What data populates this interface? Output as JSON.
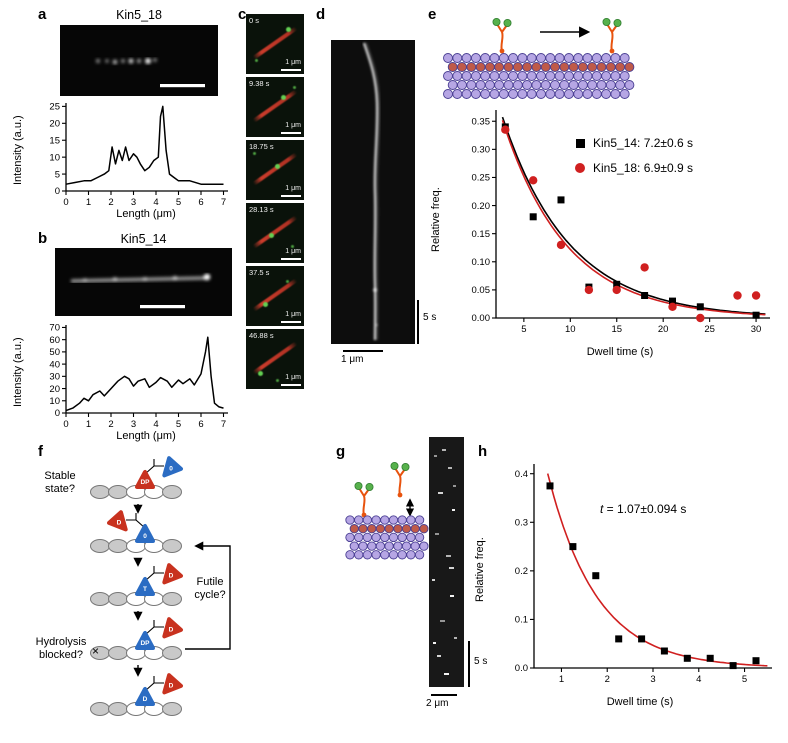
{
  "colors": {
    "background": "#ffffff",
    "mt_fill": "#b6a6e4",
    "mt_seam": "#bf5a49",
    "mt_stroke": "#4a3f93",
    "motor": "#e8530e",
    "motor_head": "#57b14c",
    "fit_red": "#d02020",
    "marker_black": "#000000"
  },
  "panel_a": {
    "label": "a",
    "title": "Kin5_18",
    "ylabel": "Intensity (a.u.)",
    "xlabel": "Length (μm)"
  },
  "panel_b": {
    "label": "b",
    "title": "Kin5_14",
    "ylabel": "Intensity (a.u.)",
    "xlabel": "Length (μm)"
  },
  "panel_c": {
    "label": "c",
    "scale_label": "1 μm",
    "frames": [
      {
        "time": "0 s"
      },
      {
        "time": "9.38 s"
      },
      {
        "time": "18.75 s"
      },
      {
        "time": "28.13 s"
      },
      {
        "time": "37.5 s"
      },
      {
        "time": "46.88 s"
      }
    ]
  },
  "panel_d": {
    "label": "d",
    "time_scale": "5 s",
    "length_scale": "1 μm"
  },
  "panel_e": {
    "label": "e",
    "ylabel": "Relative freq.",
    "xlabel": "Dwell time (s)",
    "legend": [
      {
        "marker": "square",
        "color": "#000000",
        "label": "Kin5_14: 7.2±0.6 s"
      },
      {
        "marker": "circle",
        "color": "#d02020",
        "label": "Kin5_18: 6.9±0.9 s"
      }
    ]
  },
  "panel_f": {
    "label": "f",
    "stable_label": "Stable state?",
    "futile_label": "Futile cycle?",
    "hydrolysis_label": "Hydrolysis blocked?",
    "cross_mark": "×",
    "states": [
      {
        "bound": {
          "color": "#c8321f",
          "label": "DP"
        },
        "tethered": {
          "color": "#2b6cc3",
          "label": "0",
          "side": "right"
        }
      },
      {
        "bound": {
          "color": "#2b6cc3",
          "label": "0"
        },
        "tethered": {
          "color": "#c8321f",
          "label": "D",
          "side": "left"
        }
      },
      {
        "bound": {
          "color": "#2b6cc3",
          "label": "T"
        },
        "tethered": {
          "color": "#c8321f",
          "label": "D",
          "side": "right"
        }
      },
      {
        "bound": {
          "color": "#2b6cc3",
          "label": "DP"
        },
        "tethered": {
          "color": "#c8321f",
          "label": "D",
          "side": "right"
        }
      },
      {
        "bound": {
          "color": "#2b6cc3",
          "label": "D"
        },
        "tethered": {
          "color": "#c8321f",
          "label": "D",
          "side": "right"
        }
      }
    ]
  },
  "panel_g": {
    "label": "g",
    "time_scale": "5 s",
    "length_scale": "2 μm"
  },
  "panel_h": {
    "label": "h",
    "ylabel": "Relative freq.",
    "xlabel": "Dwell time (s)",
    "annotation_var": "t",
    "annotation_rest": " = 1.07±0.094 s"
  },
  "chart_data": {
    "a": {
      "type": "line",
      "xlim": [
        0,
        7.2
      ],
      "ylim": [
        0,
        26
      ],
      "xdec": 0,
      "ydec": 0,
      "margin": {
        "l": 30,
        "t": 5,
        "r": 8,
        "b": 17
      },
      "xticks": [
        0,
        1,
        2,
        3,
        4,
        5,
        6,
        7
      ],
      "yticks": [
        0,
        5,
        10,
        15,
        20,
        25
      ],
      "xlabel": "Length (μm)",
      "ylabel": "Intensity (a.u.)",
      "series": [
        {
          "name": "Kin5_18 intensity profile",
          "type": "line",
          "color": "#000000",
          "points": [
            [
              0,
              2
            ],
            [
              0.4,
              2.5
            ],
            [
              0.8,
              3
            ],
            [
              1.1,
              3
            ],
            [
              1.4,
              4
            ],
            [
              1.7,
              5
            ],
            [
              1.9,
              6
            ],
            [
              2.05,
              13
            ],
            [
              2.2,
              8
            ],
            [
              2.35,
              12
            ],
            [
              2.5,
              9
            ],
            [
              2.65,
              13
            ],
            [
              2.8,
              9
            ],
            [
              3.0,
              11
            ],
            [
              3.15,
              10
            ],
            [
              3.3,
              8
            ],
            [
              3.5,
              6
            ],
            [
              3.7,
              7
            ],
            [
              3.9,
              9
            ],
            [
              4.1,
              10
            ],
            [
              4.2,
              22
            ],
            [
              4.3,
              25
            ],
            [
              4.45,
              12
            ],
            [
              4.6,
              5
            ],
            [
              4.8,
              4
            ],
            [
              5.0,
              3
            ],
            [
              5.5,
              3
            ],
            [
              6.0,
              2
            ],
            [
              6.5,
              2
            ],
            [
              7.0,
              2
            ]
          ]
        }
      ]
    },
    "b": {
      "type": "line",
      "xlim": [
        0,
        7.2
      ],
      "ylim": [
        0,
        72
      ],
      "xdec": 0,
      "ydec": 0,
      "margin": {
        "l": 30,
        "t": 5,
        "r": 8,
        "b": 17
      },
      "xticks": [
        0,
        1,
        2,
        3,
        4,
        5,
        6,
        7
      ],
      "yticks": [
        0,
        10,
        20,
        30,
        40,
        50,
        60,
        70
      ],
      "xlabel": "Length (μm)",
      "ylabel": "Intensity (a.u.)",
      "series": [
        {
          "name": "Kin5_14 intensity profile",
          "type": "line",
          "color": "#000000",
          "points": [
            [
              0,
              2
            ],
            [
              0.3,
              4
            ],
            [
              0.6,
              8
            ],
            [
              0.8,
              12
            ],
            [
              1.0,
              10
            ],
            [
              1.2,
              15
            ],
            [
              1.5,
              18
            ],
            [
              1.7,
              14
            ],
            [
              2.0,
              20
            ],
            [
              2.3,
              26
            ],
            [
              2.6,
              30
            ],
            [
              2.8,
              28
            ],
            [
              3.0,
              22
            ],
            [
              3.2,
              26
            ],
            [
              3.5,
              28
            ],
            [
              3.7,
              21
            ],
            [
              4.0,
              25
            ],
            [
              4.2,
              29
            ],
            [
              4.5,
              26
            ],
            [
              4.7,
              21
            ],
            [
              5.0,
              27
            ],
            [
              5.2,
              24
            ],
            [
              5.5,
              28
            ],
            [
              5.7,
              23
            ],
            [
              6.0,
              32
            ],
            [
              6.2,
              50
            ],
            [
              6.3,
              62
            ],
            [
              6.45,
              30
            ],
            [
              6.6,
              8
            ],
            [
              6.8,
              5
            ],
            [
              7.0,
              4
            ]
          ]
        }
      ]
    },
    "e": {
      "type": "scatter",
      "xlim": [
        2,
        31.5
      ],
      "ylim": [
        0,
        0.37
      ],
      "xdec": 0,
      "ydec": 2,
      "margin": {
        "l": 44,
        "t": 6,
        "r": 12,
        "b": 26
      },
      "xticks": [
        5,
        10,
        15,
        20,
        25,
        30
      ],
      "yticks": [
        0,
        0.05,
        0.1,
        0.15,
        0.2,
        0.25,
        0.3,
        0.35
      ],
      "xlabel": "Dwell time (s)",
      "ylabel": "Relative freq.",
      "series": [
        {
          "name": "Kin5_14",
          "marker": "square",
          "color": "#000000",
          "points": [
            [
              3,
              0.34
            ],
            [
              6,
              0.18
            ],
            [
              9,
              0.21
            ],
            [
              12,
              0.055
            ],
            [
              15,
              0.06
            ],
            [
              18,
              0.04
            ],
            [
              21,
              0.03
            ],
            [
              24,
              0.02
            ],
            [
              30,
              0.005
            ]
          ]
        },
        {
          "name": "Kin5_18",
          "marker": "circle",
          "color": "#d02020",
          "points": [
            [
              3,
              0.335
            ],
            [
              6,
              0.245
            ],
            [
              9,
              0.13
            ],
            [
              12,
              0.05
            ],
            [
              15,
              0.05
            ],
            [
              18,
              0.09
            ],
            [
              21,
              0.02
            ],
            [
              24,
              0.0
            ],
            [
              28,
              0.04
            ],
            [
              30,
              0.04
            ]
          ]
        }
      ],
      "fits": [
        {
          "name": "Kin5_14 exponential fit",
          "A": 0.52,
          "tau": 7.2,
          "color": "#000000",
          "from": 2.7,
          "to": 31
        },
        {
          "name": "Kin5_18 exponential fit",
          "A": 0.52,
          "tau": 6.9,
          "color": "#d02020",
          "from": 2.7,
          "to": 31
        }
      ]
    },
    "h": {
      "type": "scatter",
      "xlim": [
        0.4,
        5.6
      ],
      "ylim": [
        0,
        0.42
      ],
      "xdec": 0,
      "ydec": 1,
      "margin": {
        "l": 40,
        "t": 8,
        "r": 12,
        "b": 26
      },
      "xticks": [
        1,
        2,
        3,
        4,
        5
      ],
      "yticks": [
        0,
        0.1,
        0.2,
        0.3,
        0.4
      ],
      "xlabel": "Dwell time (s)",
      "ylabel": "Relative freq.",
      "series": [
        {
          "name": "dwell times",
          "marker": "square",
          "color": "#000000",
          "points": [
            [
              0.75,
              0.375
            ],
            [
              1.25,
              0.25
            ],
            [
              1.75,
              0.19
            ],
            [
              2.25,
              0.06
            ],
            [
              2.75,
              0.06
            ],
            [
              3.25,
              0.035
            ],
            [
              3.75,
              0.02
            ],
            [
              4.25,
              0.02
            ],
            [
              4.75,
              0.005
            ],
            [
              5.25,
              0.015
            ]
          ]
        }
      ],
      "fits": [
        {
          "name": "exponential fit t=1.07 s",
          "A": 0.77,
          "tau": 1.07,
          "color": "#d02020",
          "from": 0.7,
          "to": 5.5
        }
      ]
    }
  }
}
